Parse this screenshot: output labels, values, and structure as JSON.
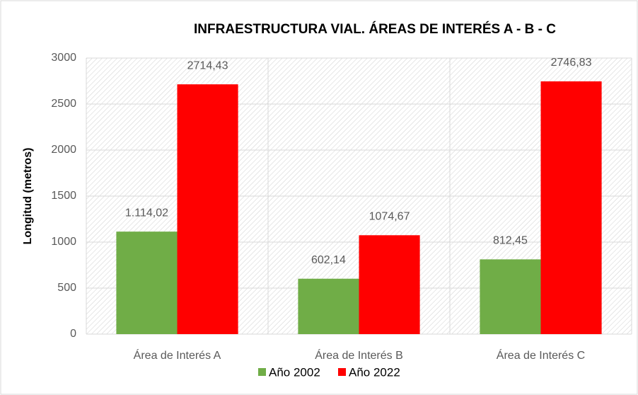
{
  "chart_data": {
    "type": "bar",
    "title": "INFRAESTRUCTURA VIAL. ÁREAS DE INTERÉS A - B - C",
    "y_label": "Longitud  (metros)",
    "categories": [
      "Área de Interés A",
      "Área de Interés B",
      "Área de Interés C"
    ],
    "series": [
      {
        "name": "Año 2002",
        "color": "#70ad47",
        "values": [
          1114.02,
          602.14,
          812.45
        ],
        "value_labels": [
          "1.114,02",
          "602,14",
          "812,45"
        ]
      },
      {
        "name": "Año 2022",
        "color": "#ff0000",
        "values": [
          2714.43,
          1074.67,
          2746.83
        ],
        "value_labels": [
          "2714,43",
          "1074,67",
          "2746,83"
        ]
      }
    ],
    "ylim": [
      0,
      3000
    ],
    "yticks": [
      0,
      500,
      1000,
      1500,
      2000,
      2500,
      3000
    ],
    "grid": true,
    "legend": "bottom"
  }
}
